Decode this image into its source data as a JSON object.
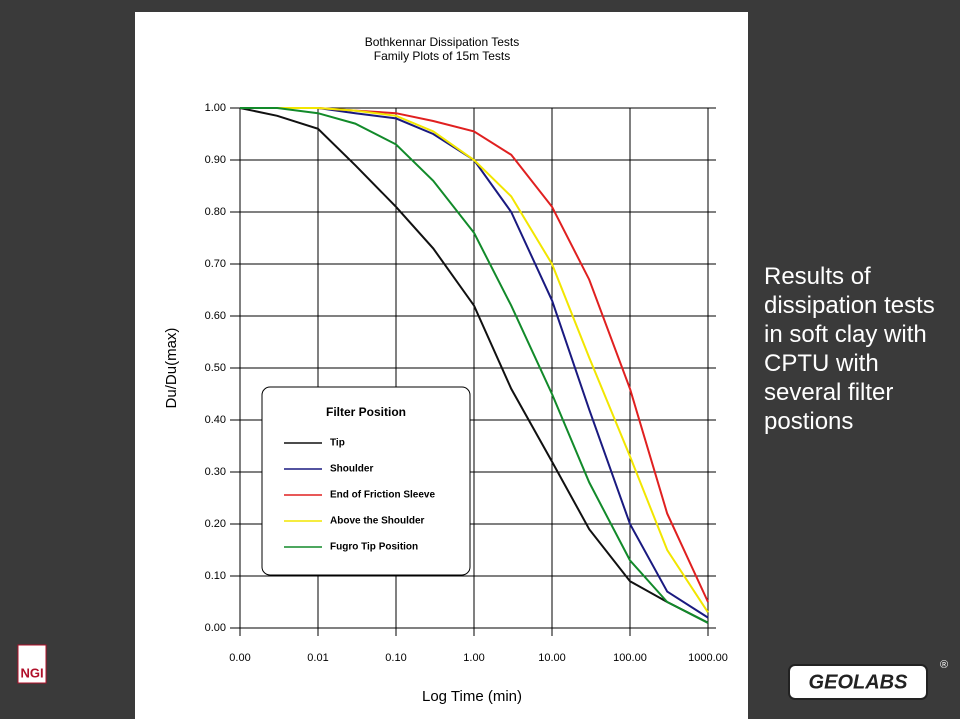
{
  "chart_data": {
    "type": "line",
    "title": "Bothkennar Dissipation Tests",
    "subtitle": "Family Plots of 15m Tests",
    "x_label": "Log Time (min)",
    "y_label": "Du/Du(max)",
    "xscale": "log",
    "grid": true,
    "legend_title": "Filter Position",
    "legend_position": "lower left",
    "xlim": [
      0.001,
      1000
    ],
    "xticks": [
      {
        "value": 0.001,
        "label": "0.00"
      },
      {
        "value": 0.01,
        "label": "0.01"
      },
      {
        "value": 0.1,
        "label": "0.10"
      },
      {
        "value": 1,
        "label": "1.00"
      },
      {
        "value": 10,
        "label": "10.00"
      },
      {
        "value": 100,
        "label": "100.00"
      },
      {
        "value": 1000,
        "label": "1000.00"
      }
    ],
    "ylim": [
      0,
      1
    ],
    "yticks": [
      {
        "value": 0,
        "label": "0.00"
      },
      {
        "value": 0.1,
        "label": "0.10"
      },
      {
        "value": 0.2,
        "label": "0.20"
      },
      {
        "value": 0.3,
        "label": "0.30"
      },
      {
        "value": 0.4,
        "label": "0.40"
      },
      {
        "value": 0.5,
        "label": "0.50"
      },
      {
        "value": 0.6,
        "label": "0.60"
      },
      {
        "value": 0.7,
        "label": "0.70"
      },
      {
        "value": 0.8,
        "label": "0.80"
      },
      {
        "value": 0.9,
        "label": "0.90"
      },
      {
        "value": 1,
        "label": "1.00"
      }
    ],
    "x": [
      0.001,
      0.003,
      0.01,
      0.03,
      0.1,
      0.3,
      1,
      3,
      10,
      30,
      100,
      300,
      1000
    ],
    "series": [
      {
        "name": "Tip",
        "color": "#111111",
        "values": [
          1.0,
          0.985,
          0.96,
          0.89,
          0.81,
          0.73,
          0.62,
          0.46,
          0.32,
          0.19,
          0.09,
          0.05,
          0.01
        ]
      },
      {
        "name": "Shoulder",
        "color": "#1a1a80",
        "values": [
          1.0,
          1.0,
          1.0,
          0.99,
          0.98,
          0.95,
          0.9,
          0.8,
          0.63,
          0.42,
          0.2,
          0.07,
          0.02
        ]
      },
      {
        "name": "End of Friction Sleeve",
        "color": "#e02020",
        "values": [
          1.0,
          1.0,
          1.0,
          0.995,
          0.99,
          0.975,
          0.955,
          0.91,
          0.81,
          0.67,
          0.46,
          0.22,
          0.05
        ]
      },
      {
        "name": "Above the Shoulder",
        "color": "#f2e600",
        "values": [
          1.0,
          1.0,
          1.0,
          0.995,
          0.985,
          0.955,
          0.9,
          0.83,
          0.7,
          0.52,
          0.33,
          0.15,
          0.03
        ]
      },
      {
        "name": "Fugro Tip Position",
        "color": "#128a2a",
        "values": [
          1.0,
          1.0,
          0.99,
          0.97,
          0.93,
          0.86,
          0.76,
          0.62,
          0.45,
          0.28,
          0.13,
          0.05,
          0.01
        ]
      }
    ]
  },
  "slide": {
    "text": "Results of dissipation tests in soft clay with CPTU with several filter postions",
    "logo_left": "NGI",
    "logo_right": "GEOLABS",
    "registered": "®"
  }
}
